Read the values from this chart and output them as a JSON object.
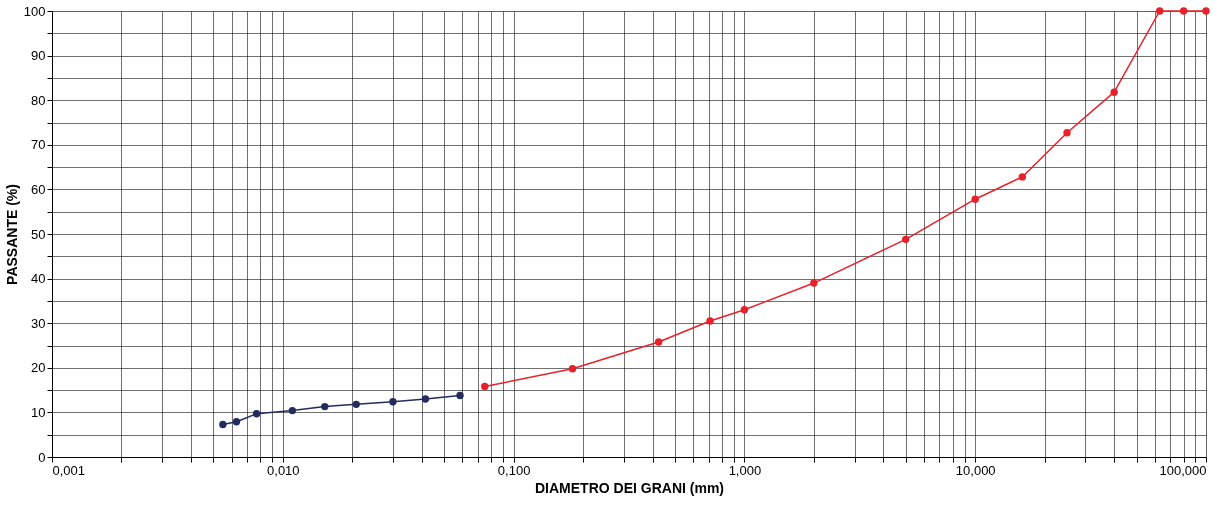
{
  "chart_data": {
    "type": "line",
    "xlabel": "DIAMETRO DEI GRANI (mm)",
    "ylabel": "PASSANTE (%)",
    "log": "x",
    "grid": true,
    "marker": "circle",
    "line_style": "solid",
    "xlim": [
      0.001,
      100
    ],
    "ylim": [
      0,
      100
    ],
    "xticks": [
      {
        "value": 0.001,
        "label": "0,001"
      },
      {
        "value": 0.002,
        "label": null
      },
      {
        "value": 0.003,
        "label": null
      },
      {
        "value": 0.004,
        "label": null
      },
      {
        "value": 0.005,
        "label": null
      },
      {
        "value": 0.006,
        "label": null
      },
      {
        "value": 0.007,
        "label": null
      },
      {
        "value": 0.008,
        "label": null
      },
      {
        "value": 0.009,
        "label": null
      },
      {
        "value": 0.01,
        "label": "0,010"
      },
      {
        "value": 0.02,
        "label": null
      },
      {
        "value": 0.03,
        "label": null
      },
      {
        "value": 0.04,
        "label": null
      },
      {
        "value": 0.05,
        "label": null
      },
      {
        "value": 0.06,
        "label": null
      },
      {
        "value": 0.07,
        "label": null
      },
      {
        "value": 0.08,
        "label": null
      },
      {
        "value": 0.09,
        "label": null
      },
      {
        "value": 0.1,
        "label": "0,100"
      },
      {
        "value": 0.2,
        "label": null
      },
      {
        "value": 0.3,
        "label": null
      },
      {
        "value": 0.4,
        "label": null
      },
      {
        "value": 0.5,
        "label": null
      },
      {
        "value": 0.6,
        "label": null
      },
      {
        "value": 0.7,
        "label": null
      },
      {
        "value": 0.8,
        "label": null
      },
      {
        "value": 0.9,
        "label": null
      },
      {
        "value": 1,
        "label": "1,000"
      },
      {
        "value": 2,
        "label": null
      },
      {
        "value": 3,
        "label": null
      },
      {
        "value": 4,
        "label": null
      },
      {
        "value": 5,
        "label": null
      },
      {
        "value": 6,
        "label": null
      },
      {
        "value": 7,
        "label": null
      },
      {
        "value": 8,
        "label": null
      },
      {
        "value": 9,
        "label": null
      },
      {
        "value": 10,
        "label": "10,000"
      },
      {
        "value": 20,
        "label": null
      },
      {
        "value": 30,
        "label": null
      },
      {
        "value": 40,
        "label": null
      },
      {
        "value": 50,
        "label": null
      },
      {
        "value": 60,
        "label": null
      },
      {
        "value": 70,
        "label": null
      },
      {
        "value": 80,
        "label": null
      },
      {
        "value": 90,
        "label": null
      },
      {
        "value": 100,
        "label": "100,000"
      }
    ],
    "yticks": [
      0,
      {
        "value": 5,
        "label": null
      },
      10,
      {
        "value": 15,
        "label": null
      },
      20,
      {
        "value": 25,
        "label": null
      },
      30,
      {
        "value": 35,
        "label": null
      },
      40,
      {
        "value": 45,
        "label": null
      },
      50,
      {
        "value": 55,
        "label": null
      },
      60,
      {
        "value": 65,
        "label": null
      },
      70,
      {
        "value": 75,
        "label": null
      },
      80,
      {
        "value": 85,
        "label": null
      },
      90,
      {
        "value": 95,
        "label": null
      },
      100
    ],
    "series": [
      {
        "color": "#232d5c",
        "x": [
          0.0055,
          0.0063,
          0.0077,
          0.011,
          0.0152,
          0.0208,
          0.03,
          0.0415,
          0.0586
        ],
        "values": [
          7.3,
          7.9,
          9.7,
          10.4,
          11.3,
          11.8,
          12.4,
          13,
          13.8
        ]
      },
      {
        "color": "#e8202a",
        "x": [
          0.075,
          0.18,
          0.425,
          0.71,
          1,
          2,
          5,
          10,
          16,
          25,
          40,
          63,
          80,
          100
        ],
        "values": [
          15.8,
          19.8,
          25.8,
          30.5,
          33,
          39,
          48.8,
          57.8,
          62.8,
          72.7,
          81.8,
          100,
          100,
          100
        ]
      }
    ]
  }
}
